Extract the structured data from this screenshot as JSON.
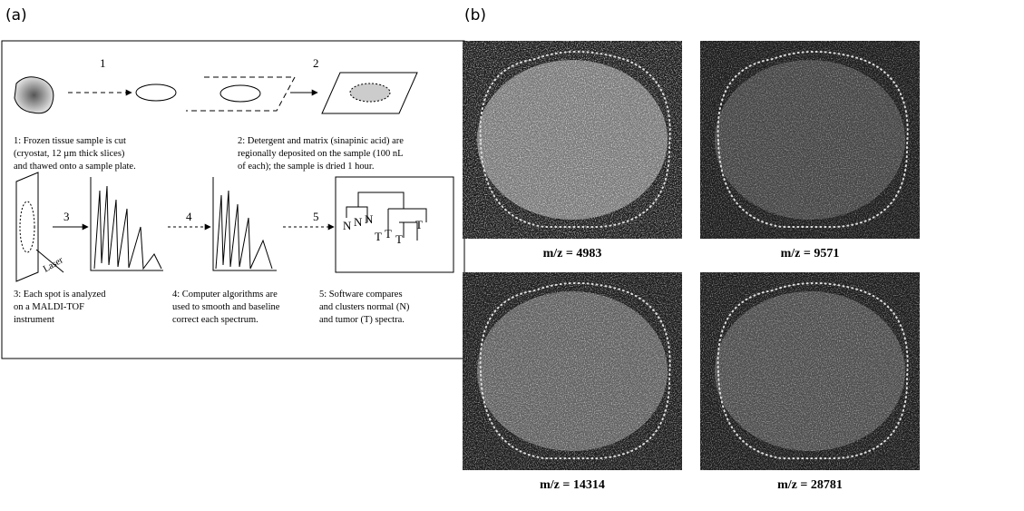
{
  "panel_a": {
    "label": "(a)",
    "steps": [
      {
        "number": "1",
        "caption_lines": [
          "1: Frozen tissue sample is cut",
          "(cryostat, 12 µm thick slices)",
          "and thawed onto a sample plate."
        ]
      },
      {
        "number": "2",
        "caption_lines": [
          "2: Detergent and matrix (sinapinic acid) are",
          "regionally deposited on the sample (100 nL",
          "of each); the sample is dried 1 hour."
        ]
      },
      {
        "number": "3",
        "caption_lines": [
          "3: Each spot is analyzed",
          "on a MALDI-TOF",
          "instrument"
        ]
      },
      {
        "number": "4",
        "caption_lines": [
          "4: Computer algorithms are",
          "used to smooth and baseline",
          "correct each spectrum."
        ]
      },
      {
        "number": "5",
        "caption_lines": [
          "5: Software compares",
          "and clusters normal (N)",
          "and tumor (T) spectra."
        ]
      }
    ],
    "laser_label": "Laser",
    "tree_labels": [
      "N",
      "N",
      "N",
      "T",
      "T",
      "T",
      "T"
    ]
  },
  "panel_b": {
    "label": "(b)",
    "images": [
      {
        "caption": "m/z = 4983"
      },
      {
        "caption": "m/z = 9571"
      },
      {
        "caption": "m/z = 14314"
      },
      {
        "caption": "m/z = 28781"
      }
    ]
  }
}
